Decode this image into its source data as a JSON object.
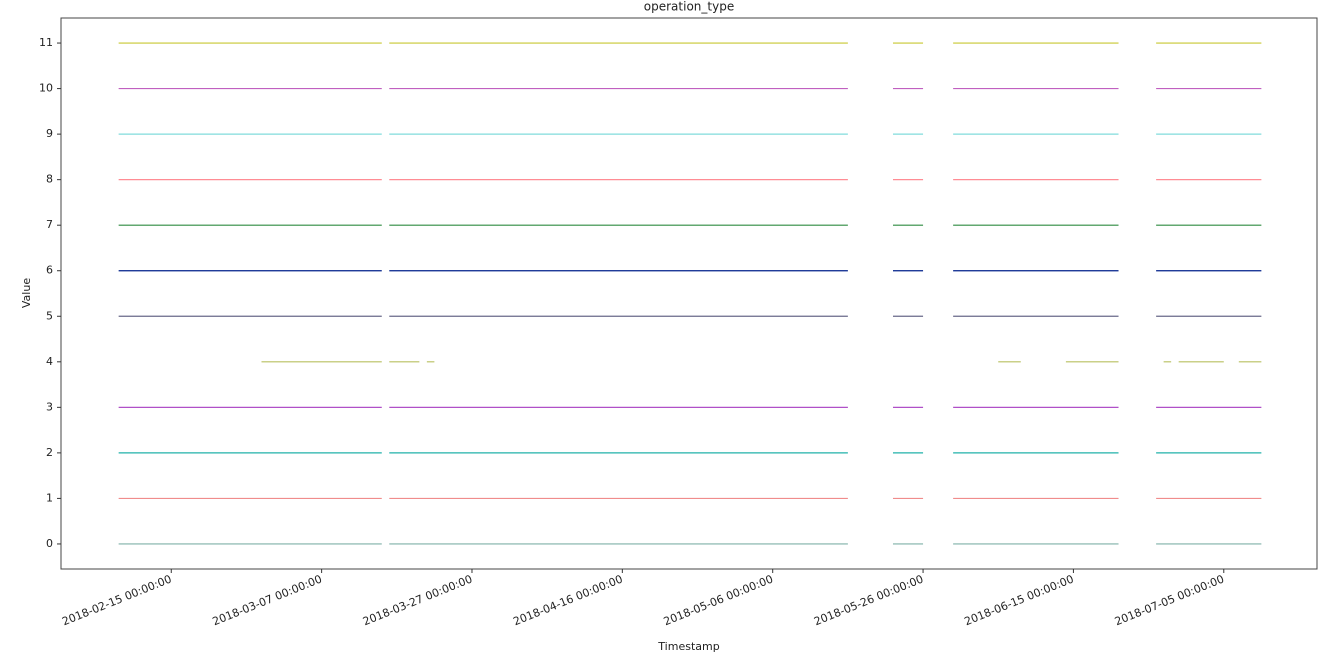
{
  "chart_data": {
    "type": "line",
    "title": "operation_type",
    "x_label": "Timestamp",
    "y_label": "Value",
    "x": [
      "2018-02-08 00:00:00",
      "2018-03-15 00:00:00",
      "2018-03-15 12:00:00",
      "2018-03-16 00:00:00",
      "2018-05-16 00:00:00",
      "2018-05-19 00:00:00",
      "2018-05-22 00:00:00",
      "2018-05-26 00:00:00",
      "2018-05-28 00:00:00",
      "2018-05-30 00:00:00",
      "2018-06-21 00:00:00",
      "2018-06-24 00:00:00",
      "2018-06-26 00:00:00",
      "2018-07-10 00:00:00"
    ],
    "series": [
      {
        "color": "#7fb0a8",
        "values": [
          0,
          0,
          null,
          0,
          0,
          null,
          0,
          0,
          null,
          0,
          0,
          null,
          0,
          0
        ]
      },
      {
        "color": "#f08c8c",
        "values": [
          1,
          1,
          null,
          1,
          1,
          null,
          1,
          1,
          null,
          1,
          1,
          null,
          1,
          1
        ]
      },
      {
        "color": "#20b2aa",
        "values": [
          2,
          2,
          null,
          2,
          2,
          null,
          2,
          2,
          null,
          2,
          2,
          null,
          2,
          2
        ]
      },
      {
        "color": "#b050c8",
        "values": [
          3,
          3,
          null,
          3,
          3,
          null,
          3,
          3,
          null,
          3,
          3,
          null,
          3,
          3
        ]
      },
      {
        "color": "#b8c060",
        "x": [
          "2018-02-27 00:00:00",
          "2018-03-15 00:00:00",
          "2018-03-15 12:00:00",
          "2018-03-16 00:00:00",
          "2018-03-20 00:00:00",
          "2018-03-20 12:00:00",
          "2018-03-21 00:00:00",
          "2018-03-22 00:00:00",
          "2018-05-01 00:00:00",
          "2018-06-05 00:00:00",
          "2018-06-08 00:00:00",
          "2018-06-11 00:00:00",
          "2018-06-14 00:00:00",
          "2018-06-21 00:00:00",
          "2018-06-24 00:00:00",
          "2018-06-27 00:00:00",
          "2018-06-28 00:00:00",
          "2018-06-28 12:00:00",
          "2018-06-29 00:00:00",
          "2018-07-05 00:00:00",
          "2018-07-06 00:00:00",
          "2018-07-07 00:00:00",
          "2018-07-10 00:00:00"
        ],
        "values": [
          4,
          4,
          null,
          4,
          4,
          null,
          4,
          4,
          null,
          4,
          4,
          null,
          4,
          4,
          null,
          4,
          4,
          null,
          4,
          4,
          null,
          4,
          4
        ]
      },
      {
        "color": "#6a6a8a",
        "values": [
          5,
          5,
          null,
          5,
          5,
          null,
          5,
          5,
          null,
          5,
          5,
          null,
          5,
          5
        ]
      },
      {
        "color": "#00208b",
        "values": [
          6,
          6,
          null,
          6,
          6,
          null,
          6,
          6,
          null,
          6,
          6,
          null,
          6,
          6
        ]
      },
      {
        "color": "#2e8b40",
        "values": [
          7,
          7,
          null,
          7,
          7,
          null,
          7,
          7,
          null,
          7,
          7,
          null,
          7,
          7
        ]
      },
      {
        "color": "#ff8c94",
        "values": [
          8,
          8,
          null,
          8,
          8,
          null,
          8,
          8,
          null,
          8,
          8,
          null,
          8,
          8
        ]
      },
      {
        "color": "#80dcdc",
        "values": [
          9,
          9,
          null,
          9,
          9,
          null,
          9,
          9,
          null,
          9,
          9,
          null,
          9,
          9
        ]
      },
      {
        "color": "#c060c0",
        "values": [
          10,
          10,
          null,
          10,
          10,
          null,
          10,
          10,
          null,
          10,
          10,
          null,
          10,
          10
        ]
      },
      {
        "color": "#c8c830",
        "values": [
          11,
          11,
          null,
          11,
          11,
          null,
          11,
          11,
          null,
          11,
          11,
          null,
          11,
          11
        ]
      }
    ],
    "xlim": [
      "2018-01-31 08:00:00",
      "2018-07-17 09:36:00"
    ],
    "xticks": [
      "2018-02-15 00:00:00",
      "2018-03-07 00:00:00",
      "2018-03-27 00:00:00",
      "2018-04-16 00:00:00",
      "2018-05-06 00:00:00",
      "2018-05-26 00:00:00",
      "2018-06-15 00:00:00",
      "2018-07-05 00:00:00"
    ],
    "ylim": [
      -0.55,
      11.55
    ],
    "yticks": [
      0,
      1,
      2,
      3,
      4,
      5,
      6,
      7,
      8,
      9,
      10,
      11
    ]
  }
}
